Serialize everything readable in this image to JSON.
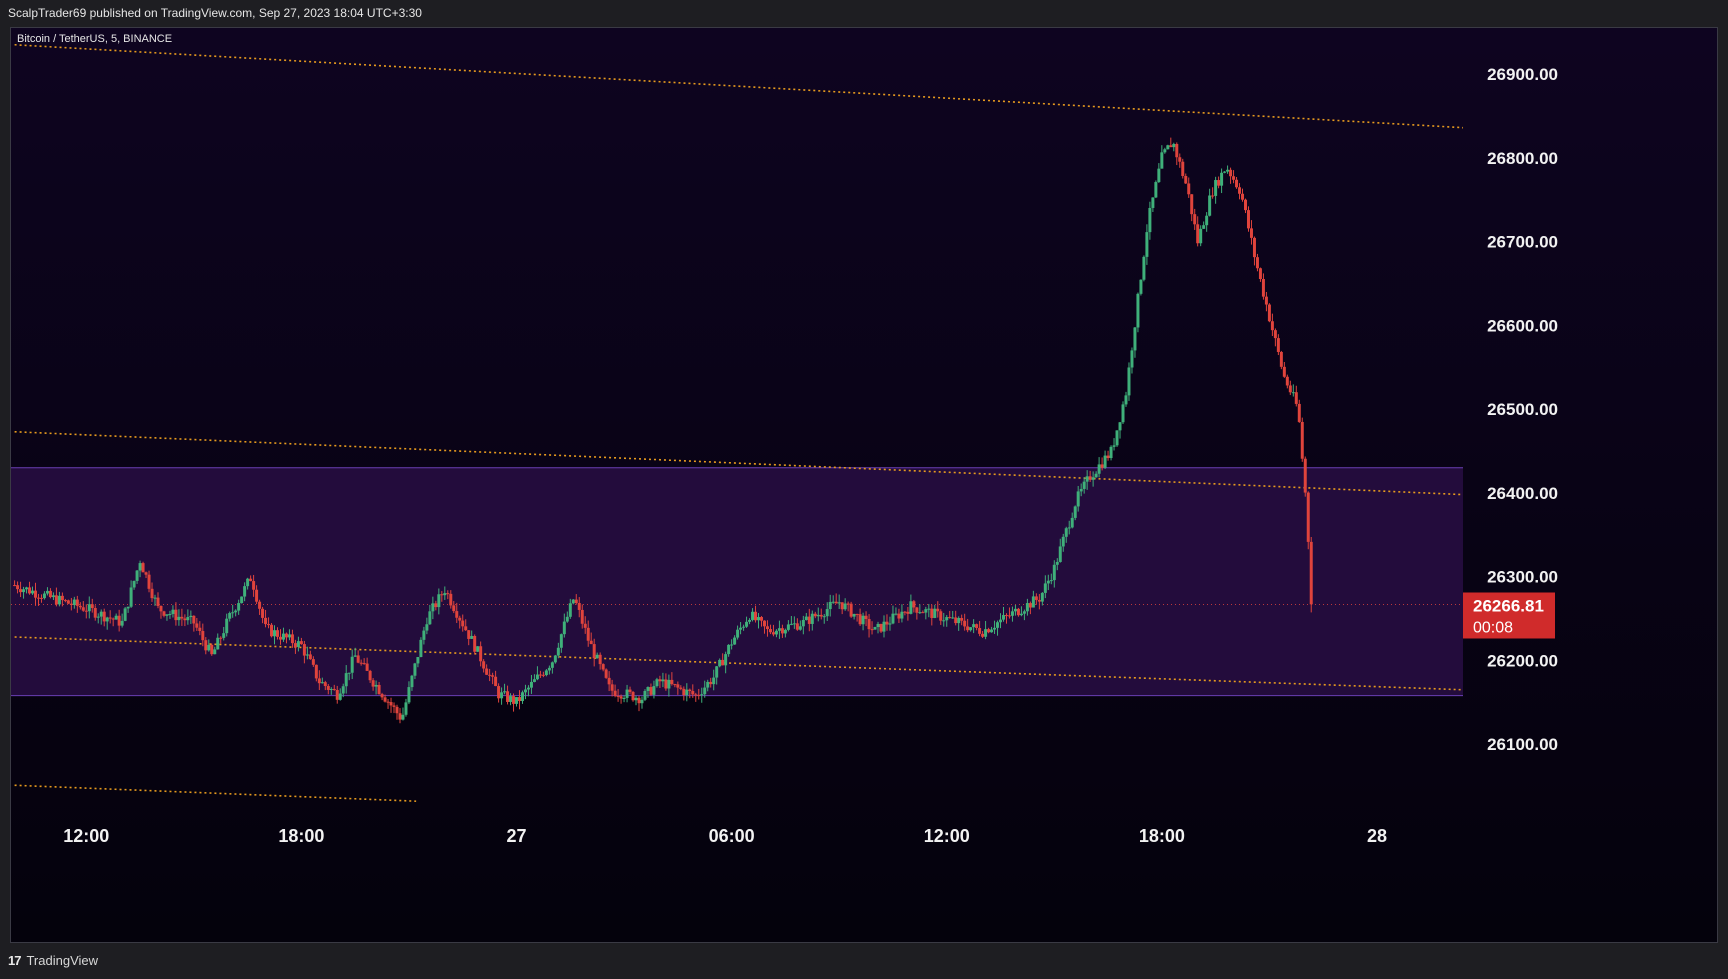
{
  "header": {
    "published": "ScalpTrader69 published on TradingView.com, Sep 27, 2023 18:04 UTC+3:30"
  },
  "footer": {
    "logo_text": "TradingView",
    "logo_icon": "tradingview-logo-icon"
  },
  "colors": {
    "background_top": "#0e0420",
    "background_bottom": "#04020c",
    "zone_fill": "#230c3c",
    "zone_border": "#6a3fb3",
    "trendline": "#e69a1e",
    "bull": "#3fb07a",
    "bear": "#e0443c",
    "price_label_bg": "#d02b2b"
  },
  "chart_data": {
    "type": "candlestick",
    "symbol_label": "Bitcoin / TetherUS, 5, BINANCE",
    "y_ticks": [
      "26900.00",
      "26800.00",
      "26700.00",
      "26600.00",
      "26500.00",
      "26400.00",
      "26300.00",
      "26200.00",
      "26100.00"
    ],
    "y_tick_values": [
      26900,
      26800,
      26700,
      26600,
      26500,
      26400,
      26300,
      26200,
      26100
    ],
    "x_ticks": [
      "12:00",
      "18:00",
      "27",
      "06:00",
      "12:00",
      "18:00",
      "28"
    ],
    "x_tick_hours": [
      12,
      18,
      24,
      30,
      36,
      42,
      48
    ],
    "x_range_hours": [
      9.9,
      50.4
    ],
    "y_range": [
      26000,
      26955
    ],
    "current_price": "26266.81",
    "current_price_value": 26266.81,
    "countdown": "00:08",
    "zone": {
      "top": 26430,
      "bottom": 26158
    },
    "trendlines": [
      {
        "from": [
          10.0,
          26935
        ],
        "to": [
          50.4,
          26836
        ]
      },
      {
        "from": [
          10.0,
          26473
        ],
        "to": [
          50.4,
          26398
        ]
      },
      {
        "from": [
          10.0,
          26228
        ],
        "to": [
          50.4,
          26165
        ]
      },
      {
        "from": [
          10.0,
          26051
        ],
        "to": [
          21.2,
          26032
        ]
      }
    ],
    "price_path": [
      [
        10.0,
        26290
      ],
      [
        11.0,
        26275
      ],
      [
        12.0,
        26262
      ],
      [
        13.0,
        26245
      ],
      [
        13.5,
        26320
      ],
      [
        14.0,
        26262
      ],
      [
        15.0,
        26245
      ],
      [
        15.5,
        26205
      ],
      [
        16.0,
        26252
      ],
      [
        16.6,
        26300
      ],
      [
        17.0,
        26238
      ],
      [
        18.0,
        26218
      ],
      [
        18.5,
        26175
      ],
      [
        19.0,
        26160
      ],
      [
        19.5,
        26205
      ],
      [
        20.0,
        26175
      ],
      [
        20.8,
        26130
      ],
      [
        21.5,
        26250
      ],
      [
        22.0,
        26285
      ],
      [
        22.8,
        26220
      ],
      [
        23.5,
        26160
      ],
      [
        24.0,
        26150
      ],
      [
        25.0,
        26200
      ],
      [
        25.6,
        26275
      ],
      [
        26.0,
        26225
      ],
      [
        26.6,
        26165
      ],
      [
        27.5,
        26155
      ],
      [
        28.0,
        26175
      ],
      [
        29.0,
        26158
      ],
      [
        29.5,
        26180
      ],
      [
        30.0,
        26222
      ],
      [
        30.5,
        26255
      ],
      [
        31.0,
        26235
      ],
      [
        32.0,
        26245
      ],
      [
        33.0,
        26270
      ],
      [
        34.0,
        26235
      ],
      [
        35.0,
        26265
      ],
      [
        36.0,
        26250
      ],
      [
        37.0,
        26235
      ],
      [
        38.0,
        26260
      ],
      [
        38.6,
        26275
      ],
      [
        39.0,
        26310
      ],
      [
        39.6,
        26390
      ],
      [
        40.0,
        26420
      ],
      [
        40.6,
        26450
      ],
      [
        41.0,
        26520
      ],
      [
        41.6,
        26720
      ],
      [
        42.0,
        26800
      ],
      [
        42.3,
        26820
      ],
      [
        42.7,
        26765
      ],
      [
        43.0,
        26700
      ],
      [
        43.4,
        26760
      ],
      [
        43.8,
        26790
      ],
      [
        44.2,
        26760
      ],
      [
        44.6,
        26680
      ],
      [
        45.0,
        26610
      ],
      [
        45.4,
        26540
      ],
      [
        45.8,
        26500
      ],
      [
        46.0,
        26400
      ],
      [
        46.2,
        26267
      ]
    ]
  }
}
